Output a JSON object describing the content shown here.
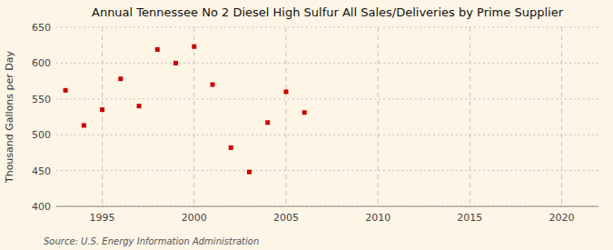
{
  "chart_data": {
    "type": "scatter",
    "title": "Annual Tennessee No 2 Diesel High Sulfur All Sales/Deliveries by Prime Supplier",
    "ylabel": "Thousand Gallons per Day",
    "source": "Source: U.S. Energy Information Administration",
    "x": [
      1993,
      1994,
      1995,
      1996,
      1997,
      1998,
      1999,
      2000,
      2001,
      2002,
      2003,
      2004,
      2005,
      2006
    ],
    "values": [
      562,
      513,
      535,
      578,
      540,
      619,
      600,
      623,
      570,
      482,
      448,
      517,
      560,
      531
    ],
    "color": "#cc0000",
    "marker": "square",
    "xlim": [
      1992.5,
      2022
    ],
    "ylim": [
      400,
      650
    ],
    "xticks": [
      1995,
      2000,
      2005,
      2010,
      2015,
      2020
    ],
    "yticks": [
      400,
      450,
      500,
      550,
      600,
      650
    ],
    "grid": true
  }
}
